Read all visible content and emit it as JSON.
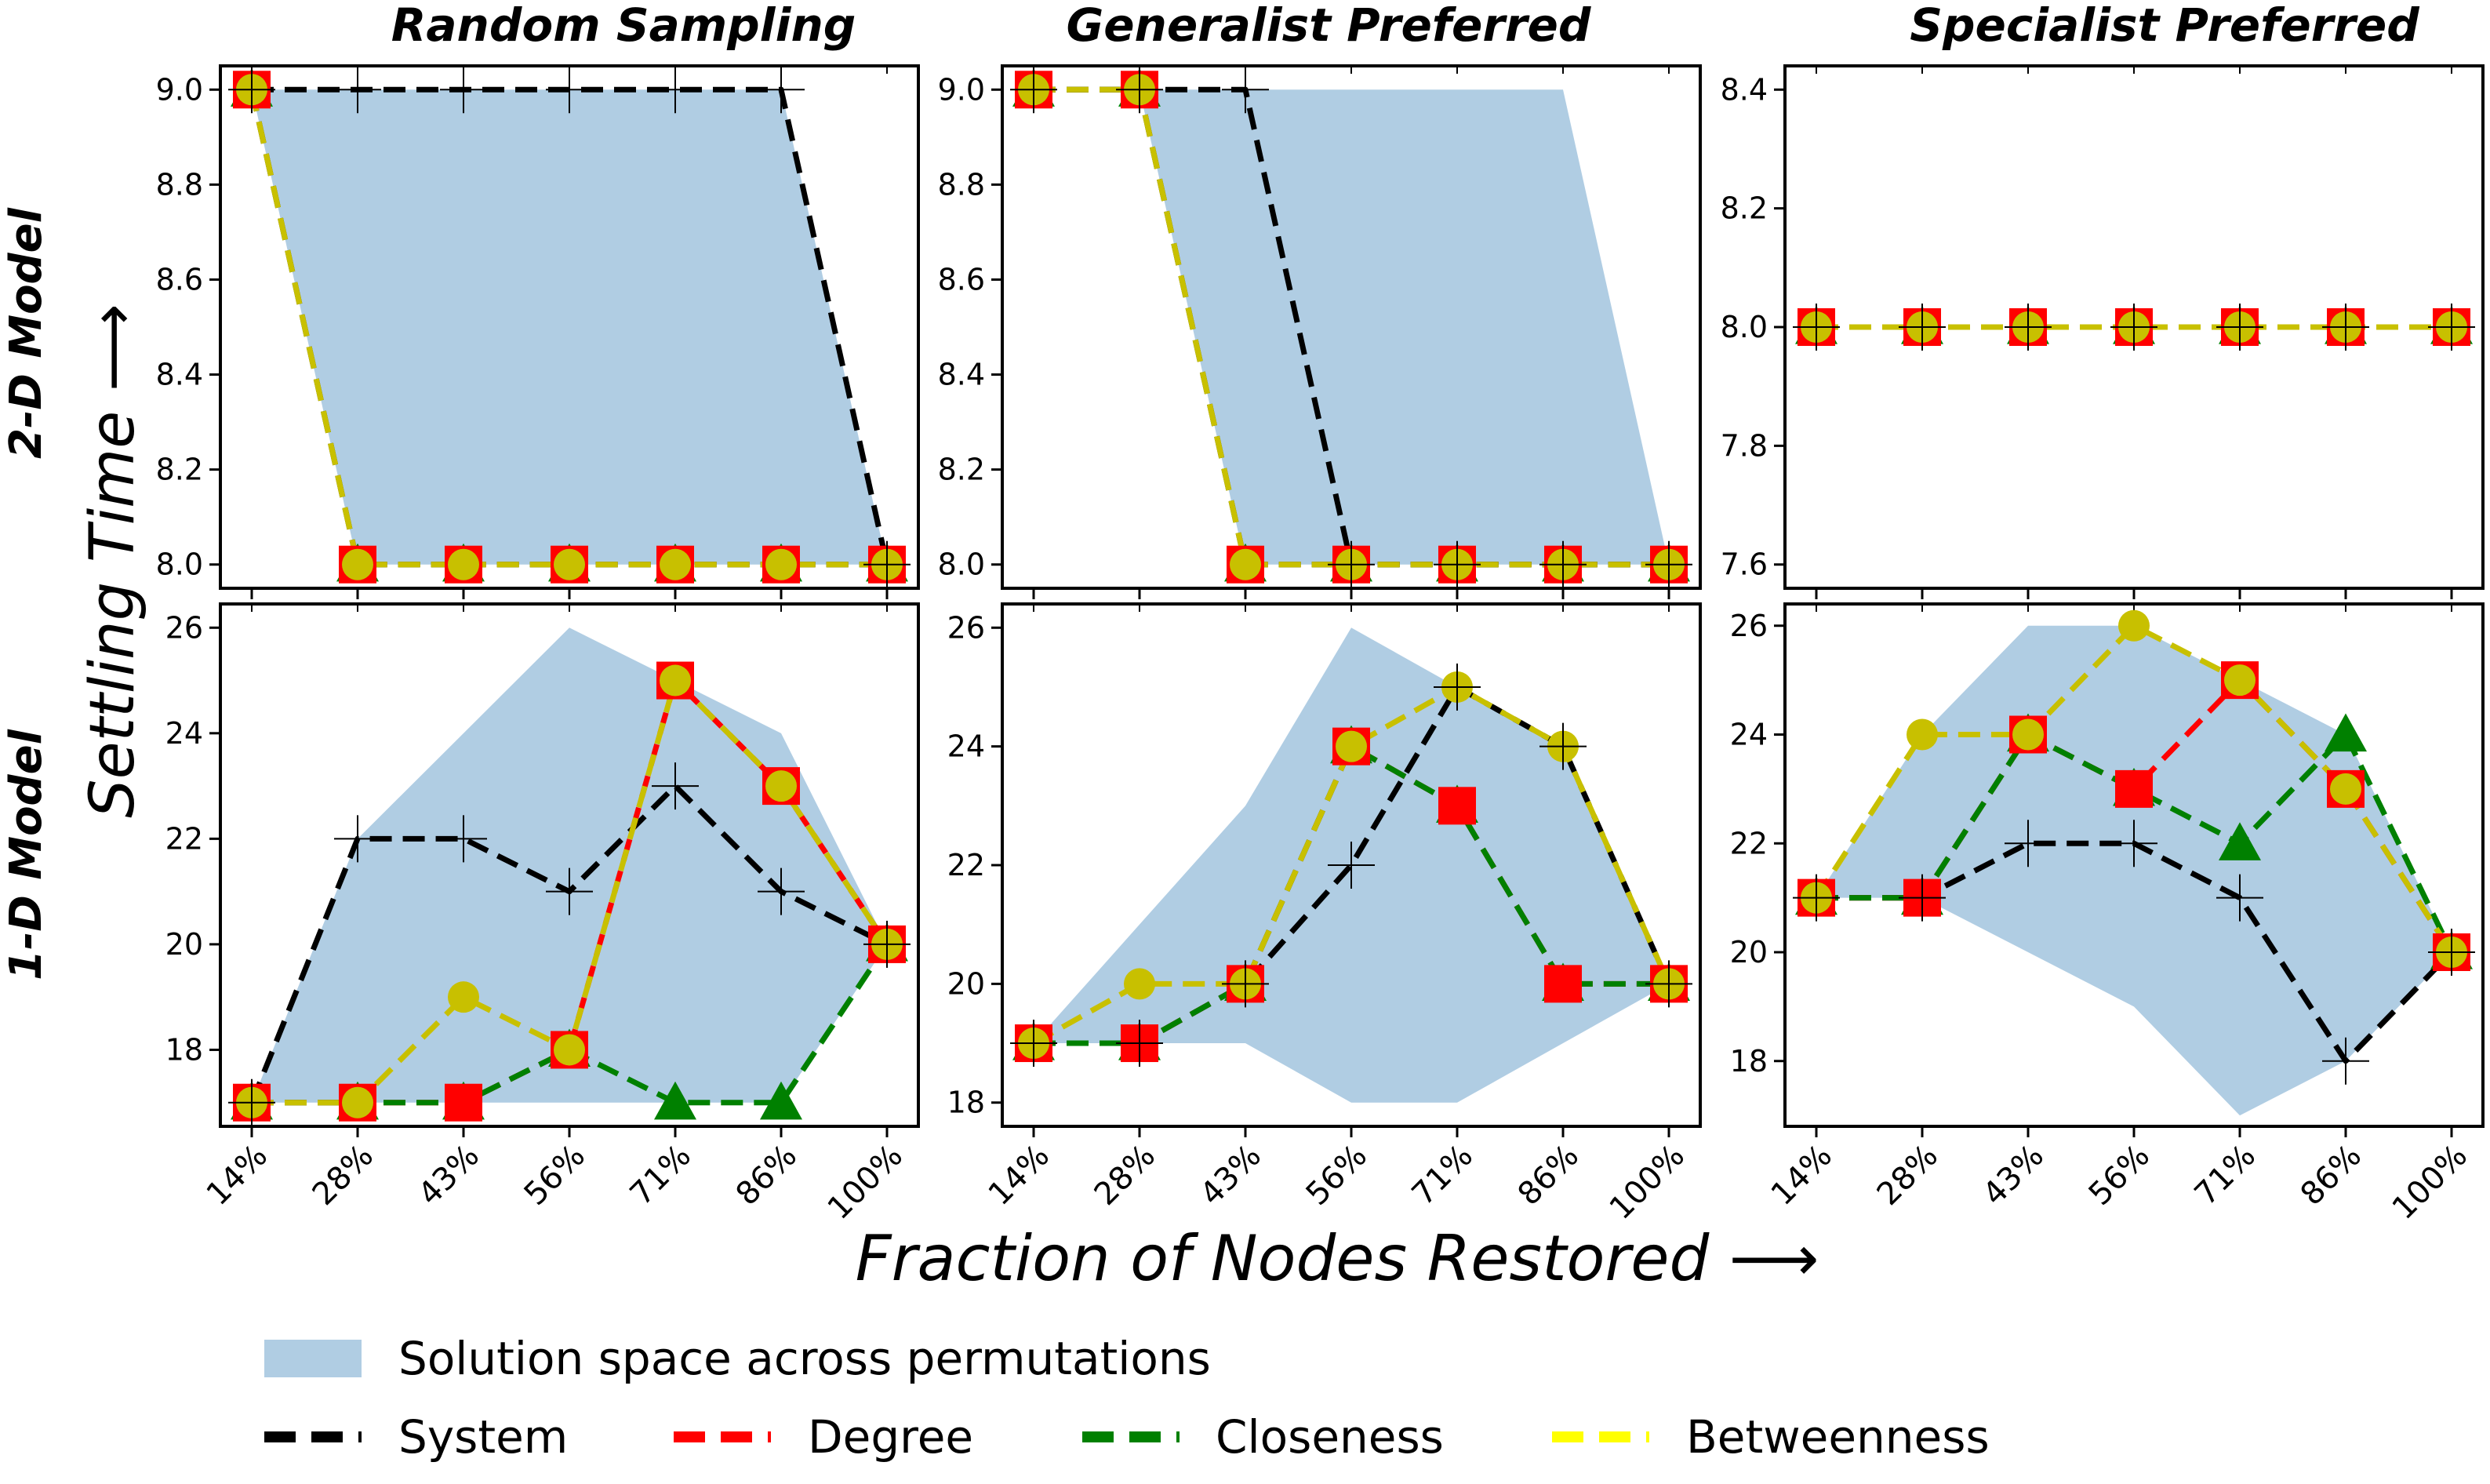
{
  "figure": {
    "x_label": "Fraction of Nodes Restored ⟶",
    "y_label": "Settling Time ⟶",
    "row_labels": [
      "2-D Model",
      "1-D Model"
    ],
    "column_titles": [
      "Random Sampling",
      "Generalist Preferred",
      "Specialist Preferred"
    ]
  },
  "legend": {
    "band_label": "Solution space across permutations",
    "entries": [
      {
        "label": "System",
        "color": "#000000"
      },
      {
        "label": "Degree",
        "color": "#ff0000"
      },
      {
        "label": "Closeness",
        "color": "#008000"
      },
      {
        "label": "Betweenness",
        "color": "#ffff00"
      }
    ]
  },
  "styles": {
    "band_color": "#b0cde3",
    "system_color": "#000000",
    "degree_color": "#ff0000",
    "closeness_color": "#008000",
    "betweenness_color": "#c8c000",
    "marker_system": "plus",
    "marker_degree": "square",
    "marker_closeness": "triangle",
    "marker_betweenness": "circle"
  },
  "chart_data": [
    {
      "type": "line",
      "row": 0,
      "col": 0,
      "categories": [
        "14%",
        "28%",
        "43%",
        "56%",
        "71%",
        "86%",
        "100%"
      ],
      "ylim": [
        7.95,
        9.05
      ],
      "yticks": [
        8.0,
        8.2,
        8.4,
        8.6,
        8.8,
        9.0
      ],
      "band": {
        "upper": [
          9,
          9,
          9,
          9,
          9,
          9,
          8
        ],
        "lower": [
          9,
          8,
          8,
          8,
          8,
          8,
          8
        ]
      },
      "series": [
        {
          "name": "System",
          "values": [
            9,
            9,
            9,
            9,
            9,
            9,
            8
          ]
        },
        {
          "name": "Degree",
          "values": [
            9,
            8,
            8,
            8,
            8,
            8,
            8
          ]
        },
        {
          "name": "Closeness",
          "values": [
            9,
            8,
            8,
            8,
            8,
            8,
            8
          ]
        },
        {
          "name": "Betweenness",
          "values": [
            9,
            8,
            8,
            8,
            8,
            8,
            8
          ]
        }
      ]
    },
    {
      "type": "line",
      "row": 0,
      "col": 1,
      "categories": [
        "14%",
        "28%",
        "43%",
        "56%",
        "71%",
        "86%",
        "100%"
      ],
      "ylim": [
        7.95,
        9.05
      ],
      "yticks": [
        8.0,
        8.2,
        8.4,
        8.6,
        8.8,
        9.0
      ],
      "band": {
        "upper": [
          9,
          9,
          9,
          9,
          9,
          9,
          8
        ],
        "lower": [
          9,
          9,
          8,
          8,
          8,
          8,
          8
        ]
      },
      "series": [
        {
          "name": "System",
          "values": [
            9,
            9,
            9,
            8,
            8,
            8,
            8
          ]
        },
        {
          "name": "Degree",
          "values": [
            9,
            9,
            8,
            8,
            8,
            8,
            8
          ]
        },
        {
          "name": "Closeness",
          "values": [
            9,
            9,
            8,
            8,
            8,
            8,
            8
          ]
        },
        {
          "name": "Betweenness",
          "values": [
            9,
            9,
            8,
            8,
            8,
            8,
            8
          ]
        }
      ]
    },
    {
      "type": "line",
      "row": 0,
      "col": 2,
      "categories": [
        "14%",
        "28%",
        "43%",
        "56%",
        "71%",
        "86%",
        "100%"
      ],
      "ylim": [
        7.56,
        8.44
      ],
      "yticks": [
        7.6,
        7.8,
        8.0,
        8.2,
        8.4
      ],
      "band": {
        "upper": [
          8,
          8,
          8,
          8,
          8,
          8,
          8
        ],
        "lower": [
          8,
          8,
          8,
          8,
          8,
          8,
          8
        ]
      },
      "series": [
        {
          "name": "System",
          "values": [
            8,
            8,
            8,
            8,
            8,
            8,
            8
          ]
        },
        {
          "name": "Degree",
          "values": [
            8,
            8,
            8,
            8,
            8,
            8,
            8
          ]
        },
        {
          "name": "Closeness",
          "values": [
            8,
            8,
            8,
            8,
            8,
            8,
            8
          ]
        },
        {
          "name": "Betweenness",
          "values": [
            8,
            8,
            8,
            8,
            8,
            8,
            8
          ]
        }
      ]
    },
    {
      "type": "line",
      "row": 1,
      "col": 0,
      "categories": [
        "14%",
        "28%",
        "43%",
        "56%",
        "71%",
        "86%",
        "100%"
      ],
      "ylim": [
        16.55,
        26.45
      ],
      "yticks": [
        18,
        20,
        22,
        24,
        26
      ],
      "band": {
        "upper": [
          17,
          22,
          24,
          26,
          25,
          24,
          20
        ],
        "lower": [
          17,
          17,
          17,
          17,
          17,
          17,
          20
        ]
      },
      "series": [
        {
          "name": "System",
          "values": [
            17,
            22,
            22,
            21,
            23,
            21,
            20
          ]
        },
        {
          "name": "Degree",
          "values": [
            17,
            17,
            17,
            18,
            25,
            23,
            20
          ]
        },
        {
          "name": "Closeness",
          "values": [
            17,
            17,
            17,
            18,
            17,
            17,
            20
          ]
        },
        {
          "name": "Betweenness",
          "values": [
            17,
            17,
            19,
            18,
            25,
            23,
            20
          ]
        }
      ]
    },
    {
      "type": "line",
      "row": 1,
      "col": 1,
      "categories": [
        "14%",
        "28%",
        "43%",
        "56%",
        "71%",
        "86%",
        "100%"
      ],
      "ylim": [
        17.6,
        26.4
      ],
      "yticks": [
        18,
        20,
        22,
        24,
        26
      ],
      "band": {
        "upper": [
          19,
          21,
          23,
          26,
          25,
          24,
          20
        ],
        "lower": [
          19,
          19,
          19,
          18,
          18,
          19,
          20
        ]
      },
      "series": [
        {
          "name": "System",
          "values": [
            19,
            19,
            20,
            22,
            25,
            24,
            20
          ]
        },
        {
          "name": "Degree",
          "values": [
            19,
            19,
            20,
            24,
            23,
            20,
            20
          ]
        },
        {
          "name": "Closeness",
          "values": [
            19,
            19,
            20,
            24,
            23,
            20,
            20
          ]
        },
        {
          "name": "Betweenness",
          "values": [
            19,
            20,
            20,
            24,
            25,
            24,
            20
          ]
        }
      ]
    },
    {
      "type": "line",
      "row": 1,
      "col": 2,
      "categories": [
        "14%",
        "28%",
        "43%",
        "56%",
        "71%",
        "86%",
        "100%"
      ],
      "ylim": [
        16.8,
        26.4
      ],
      "yticks": [
        18,
        20,
        22,
        24,
        26
      ],
      "band": {
        "upper": [
          21,
          24,
          26,
          26,
          25,
          24,
          20
        ],
        "lower": [
          21,
          21,
          20,
          19,
          17,
          18,
          20
        ]
      },
      "series": [
        {
          "name": "System",
          "values": [
            21,
            21,
            22,
            22,
            21,
            18,
            20
          ]
        },
        {
          "name": "Degree",
          "values": [
            21,
            21,
            24,
            23,
            25,
            23,
            20
          ]
        },
        {
          "name": "Closeness",
          "values": [
            21,
            21,
            24,
            23,
            22,
            24,
            20
          ]
        },
        {
          "name": "Betweenness",
          "values": [
            21,
            24,
            24,
            26,
            25,
            23,
            20
          ]
        }
      ]
    }
  ]
}
